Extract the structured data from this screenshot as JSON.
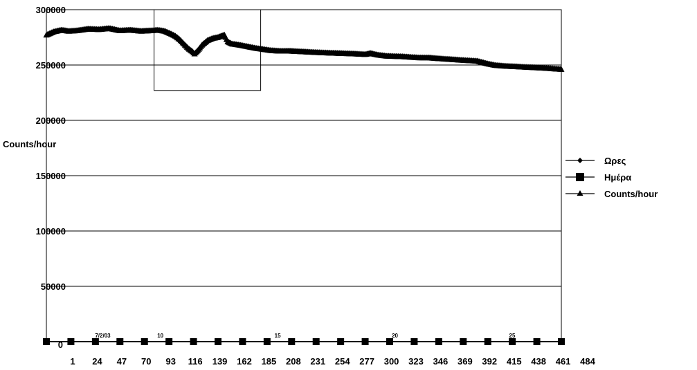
{
  "chart_data": {
    "type": "line",
    "ylabel": "Counts/hour",
    "ylim": [
      0,
      300000
    ],
    "y_ticks": [
      {
        "value": 300000,
        "label": "300000"
      },
      {
        "value": 250000,
        "label": "250000"
      },
      {
        "value": 200000,
        "label": "200000"
      },
      {
        "value": 150000,
        "label": "150000"
      },
      {
        "value": 100000,
        "label": "100000"
      },
      {
        "value": 50000,
        "label": "50000"
      },
      {
        "value": 0,
        "label": "0"
      }
    ],
    "xlim": [
      1,
      484
    ],
    "x_ticks": [
      "1",
      "24",
      "47",
      "70",
      "93",
      "116",
      "139",
      "162",
      "185",
      "208",
      "231",
      "254",
      "277",
      "300",
      "323",
      "346",
      "369",
      "392",
      "415",
      "438",
      "461",
      "484"
    ],
    "day_labels": [
      {
        "x": 50,
        "label": "7/2/03"
      },
      {
        "x": 104,
        "label": "10"
      },
      {
        "x": 214,
        "label": "15"
      },
      {
        "x": 324,
        "label": "20"
      },
      {
        "x": 434,
        "label": "25"
      }
    ],
    "grid": true,
    "legend_position": "right",
    "highlight_box": {
      "x_range": [
        102,
        202
      ],
      "y_range": [
        227000,
        300000
      ]
    },
    "series": [
      {
        "name": "Ωρες",
        "marker": "diamond",
        "points": []
      },
      {
        "name": "Ημέρα",
        "marker": "square",
        "y_value": 0,
        "x": [
          1,
          24,
          47,
          70,
          93,
          116,
          139,
          162,
          185,
          208,
          231,
          254,
          277,
          300,
          323,
          346,
          369,
          392,
          415,
          438,
          461,
          484
        ]
      },
      {
        "name": "Counts/hour",
        "marker": "triangle",
        "points": [
          [
            1,
            277000
          ],
          [
            8,
            280000
          ],
          [
            15,
            281500
          ],
          [
            22,
            280500
          ],
          [
            30,
            281000
          ],
          [
            40,
            282500
          ],
          [
            50,
            282000
          ],
          [
            60,
            283000
          ],
          [
            70,
            281000
          ],
          [
            80,
            281500
          ],
          [
            90,
            280500
          ],
          [
            100,
            281000
          ],
          [
            105,
            281500
          ],
          [
            112,
            280500
          ],
          [
            118,
            278000
          ],
          [
            122,
            276000
          ],
          [
            126,
            273000
          ],
          [
            130,
            269000
          ],
          [
            134,
            265000
          ],
          [
            138,
            262000
          ],
          [
            140,
            260000
          ],
          [
            143,
            263000
          ],
          [
            147,
            268000
          ],
          [
            152,
            272000
          ],
          [
            157,
            274000
          ],
          [
            162,
            275000
          ],
          [
            166,
            276500
          ],
          [
            168,
            277000
          ],
          [
            171,
            271000
          ],
          [
            175,
            269000
          ],
          [
            182,
            268000
          ],
          [
            190,
            266500
          ],
          [
            198,
            265000
          ],
          [
            205,
            264000
          ],
          [
            212,
            263000
          ],
          [
            220,
            262500
          ],
          [
            230,
            262500
          ],
          [
            240,
            262000
          ],
          [
            250,
            261500
          ],
          [
            260,
            261000
          ],
          [
            275,
            260500
          ],
          [
            290,
            260000
          ],
          [
            300,
            259500
          ],
          [
            305,
            260500
          ],
          [
            312,
            259000
          ],
          [
            320,
            258000
          ],
          [
            335,
            257500
          ],
          [
            350,
            256500
          ],
          [
            360,
            256500
          ],
          [
            365,
            256000
          ],
          [
            380,
            255000
          ],
          [
            395,
            254000
          ],
          [
            405,
            253500
          ],
          [
            415,
            251000
          ],
          [
            423,
            249500
          ],
          [
            430,
            249000
          ],
          [
            440,
            248500
          ],
          [
            450,
            248000
          ],
          [
            460,
            247500
          ],
          [
            470,
            247000
          ],
          [
            484,
            246000
          ]
        ]
      }
    ]
  }
}
